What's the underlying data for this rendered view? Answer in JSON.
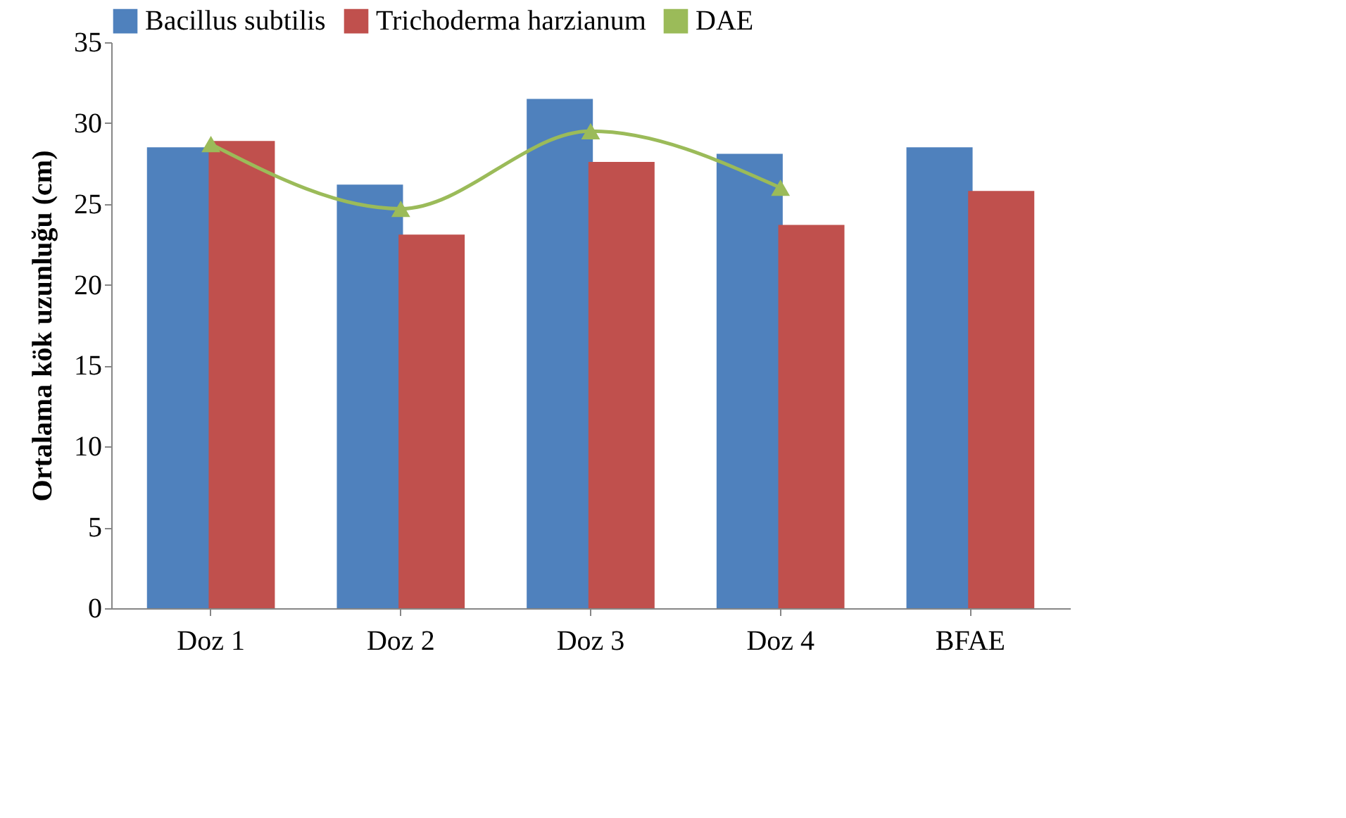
{
  "chart_data": {
    "type": "bar",
    "ylabel": "Ortalama kök uzunluğu (cm)",
    "categories": [
      "Doz 1",
      "Doz 2",
      "Doz 3",
      "Doz 4",
      "BFAE"
    ],
    "series": [
      {
        "name": "Bacillus subtilis",
        "color": "#4f81bd",
        "values": [
          28.5,
          26.2,
          31.5,
          28.1,
          28.5
        ]
      },
      {
        "name": "Trichoderma harzianum",
        "color": "#c0504d",
        "values": [
          28.9,
          23.1,
          27.6,
          23.7,
          25.8
        ]
      },
      {
        "name": "DAE",
        "type": "line",
        "color": "#9bbb59",
        "values": [
          28.7,
          24.7,
          29.5,
          26.0,
          null
        ]
      }
    ],
    "ylim": [
      0,
      35
    ],
    "yticks": [
      0,
      5,
      10,
      15,
      20,
      25,
      30,
      35
    ],
    "grid": false,
    "legend": "top",
    "marker": "triangle"
  }
}
